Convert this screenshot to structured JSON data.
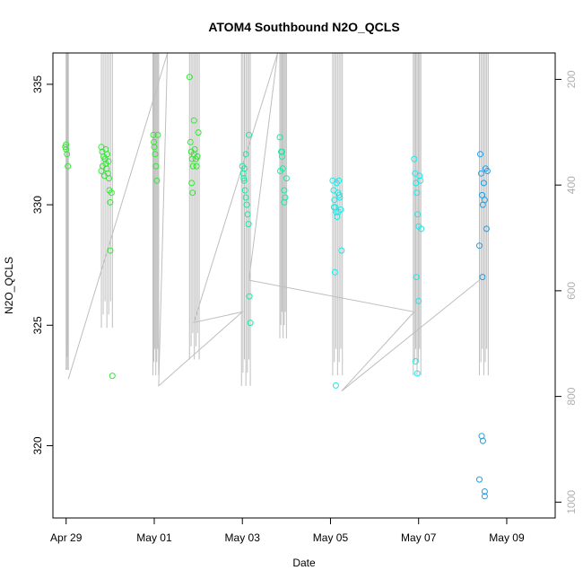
{
  "chart_data": {
    "type": "scatter",
    "title": "ATOM4 Southbound N2O_QCLS",
    "xlabel": "Date",
    "ylabel": "N2O_QCLS",
    "x_tick_labels": [
      "Apr 29",
      "May 01",
      "May 03",
      "May 05",
      "May 07",
      "May 09"
    ],
    "x_tick_values": [
      0,
      2,
      4,
      6,
      8,
      10
    ],
    "xlim": [
      -0.3,
      11.1
    ],
    "y_ticks": [
      320,
      325,
      330,
      335
    ],
    "ylim": [
      317,
      336.3
    ],
    "y2_ticks": [
      200,
      400,
      600,
      800,
      1000
    ],
    "y2lim": [
      1030,
      150
    ],
    "y2_direction": "reversed",
    "grid": false,
    "colors": {
      "green": "#1ee81e",
      "cyan": "#1ee8e8",
      "blue": "#1e90e8",
      "profile_line": "#bebebe",
      "axis": "#000000"
    },
    "series": [
      {
        "color": "#32e832",
        "points": [
          [
            0,
            332.5
          ],
          [
            0,
            332.3
          ],
          [
            0.02,
            332.1
          ],
          [
            -0.02,
            332.4
          ],
          [
            0.04,
            331.6
          ],
          [
            0.8,
            332.4
          ],
          [
            0.82,
            332.2
          ],
          [
            0.85,
            332.0
          ],
          [
            0.88,
            331.9
          ],
          [
            0.9,
            331.7
          ],
          [
            0.92,
            331.5
          ],
          [
            0.95,
            331.3
          ],
          [
            0.97,
            331.1
          ],
          [
            0.8,
            331.4
          ],
          [
            0.83,
            331.6
          ],
          [
            0.87,
            331.2
          ],
          [
            0.9,
            332.3
          ],
          [
            0.93,
            332.1
          ],
          [
            0.96,
            331.8
          ],
          [
            0.98,
            330.6
          ],
          [
            1.0,
            330.1
          ],
          [
            1.0,
            328.1
          ],
          [
            1.03,
            330.5
          ],
          [
            1.05,
            322.9
          ],
          [
            1.98,
            332.9
          ],
          [
            2.0,
            332.4
          ],
          [
            2.02,
            332.1
          ],
          [
            2.04,
            331.6
          ],
          [
            2.06,
            331.0
          ],
          [
            2.08,
            332.9
          ],
          [
            1.99,
            332.6
          ],
          [
            2.8,
            335.3
          ],
          [
            2.82,
            332.6
          ],
          [
            2.84,
            332.2
          ],
          [
            2.86,
            331.9
          ],
          [
            2.88,
            331.6
          ],
          [
            2.9,
            333.5
          ],
          [
            2.92,
            332.3
          ],
          [
            2.94,
            331.9
          ],
          [
            2.96,
            331.6
          ],
          [
            2.98,
            332.0
          ],
          [
            3.0,
            333.0
          ],
          [
            2.85,
            330.9
          ],
          [
            2.87,
            330.5
          ],
          [
            2.9,
            332.1
          ]
        ]
      },
      {
        "color": "#1ee8a0",
        "points": [
          [
            4.0,
            331.6
          ],
          [
            4.02,
            331.3
          ],
          [
            4.04,
            331.0
          ],
          [
            4.06,
            330.6
          ],
          [
            4.08,
            330.3
          ],
          [
            4.1,
            330.0
          ],
          [
            4.12,
            329.6
          ],
          [
            4.14,
            329.2
          ],
          [
            4.05,
            331.5
          ],
          [
            4.08,
            332.1
          ],
          [
            4.15,
            332.9
          ],
          [
            4.16,
            326.2
          ],
          [
            4.18,
            325.1
          ],
          [
            4.03,
            331.1
          ],
          [
            4.85,
            332.8
          ],
          [
            4.88,
            332.2
          ],
          [
            4.9,
            332.0
          ],
          [
            4.92,
            331.5
          ],
          [
            4.95,
            330.6
          ],
          [
            4.97,
            330.3
          ],
          [
            5.0,
            331.1
          ],
          [
            4.86,
            331.4
          ],
          [
            4.9,
            332.2
          ],
          [
            4.95,
            330.1
          ]
        ]
      },
      {
        "color": "#1ee8e8",
        "points": [
          [
            6.05,
            331.0
          ],
          [
            6.07,
            330.6
          ],
          [
            6.09,
            330.2
          ],
          [
            6.11,
            329.9
          ],
          [
            6.13,
            329.7
          ],
          [
            6.15,
            329.5
          ],
          [
            6.17,
            330.5
          ],
          [
            6.19,
            331.0
          ],
          [
            6.21,
            330.3
          ],
          [
            6.23,
            329.8
          ],
          [
            6.25,
            328.1
          ],
          [
            6.1,
            327.2
          ],
          [
            6.12,
            322.5
          ],
          [
            6.08,
            329.9
          ],
          [
            6.14,
            330.9
          ],
          [
            6.18,
            329.7
          ],
          [
            6.2,
            330.4
          ],
          [
            7.9,
            331.9
          ],
          [
            7.92,
            331.3
          ],
          [
            7.94,
            330.9
          ],
          [
            7.96,
            330.5
          ],
          [
            7.98,
            329.6
          ],
          [
            8.0,
            329.1
          ],
          [
            8.02,
            331.2
          ],
          [
            8.04,
            331.0
          ],
          [
            8.06,
            329.0
          ],
          [
            7.95,
            327.0
          ],
          [
            8.0,
            326.0
          ],
          [
            7.93,
            323.5
          ],
          [
            7.97,
            323.0
          ]
        ]
      },
      {
        "color": "#1e9ee8",
        "points": [
          [
            9.4,
            332.1
          ],
          [
            9.42,
            331.3
          ],
          [
            9.44,
            330.4
          ],
          [
            9.46,
            330.0
          ],
          [
            9.48,
            330.9
          ],
          [
            9.5,
            330.2
          ],
          [
            9.52,
            331.5
          ],
          [
            9.54,
            329.0
          ],
          [
            9.56,
            331.4
          ],
          [
            9.38,
            328.3
          ],
          [
            9.45,
            327.0
          ],
          [
            9.43,
            320.4
          ],
          [
            9.46,
            320.2
          ],
          [
            9.38,
            318.6
          ],
          [
            9.5,
            318.1
          ],
          [
            9.5,
            317.9
          ]
        ]
      }
    ],
    "profile_lines": [
      {
        "x_from": 0.0,
        "x_to": 0.05,
        "alt_top": 150,
        "alt_bottom": 750
      },
      {
        "x_from": 0.8,
        "x_to": 1.05,
        "alt_top": 150,
        "alt_bottom": 670
      },
      {
        "x_from": 1.97,
        "x_to": 2.1,
        "alt_top": 150,
        "alt_bottom": 760
      },
      {
        "x_from": 2.8,
        "x_to": 3.02,
        "alt_top": 150,
        "alt_bottom": 730
      },
      {
        "x_from": 3.98,
        "x_to": 4.18,
        "alt_top": 150,
        "alt_bottom": 780
      },
      {
        "x_from": 4.85,
        "x_to": 5.0,
        "alt_top": 150,
        "alt_bottom": 690
      },
      {
        "x_from": 6.05,
        "x_to": 6.27,
        "alt_top": 150,
        "alt_bottom": 760
      },
      {
        "x_from": 7.88,
        "x_to": 8.05,
        "alt_top": 150,
        "alt_bottom": 760
      },
      {
        "x_from": 9.38,
        "x_to": 9.58,
        "alt_top": 150,
        "alt_bottom": 760
      }
    ],
    "transit_path": [
      [
        0.05,
        767
      ],
      [
        2.3,
        150
      ],
      [
        2.1,
        780
      ],
      [
        4.0,
        640
      ],
      [
        2.9,
        660
      ],
      [
        4.8,
        150
      ],
      [
        4.15,
        580
      ],
      [
        7.9,
        640
      ],
      [
        6.25,
        790
      ],
      [
        9.38,
        580
      ]
    ]
  }
}
